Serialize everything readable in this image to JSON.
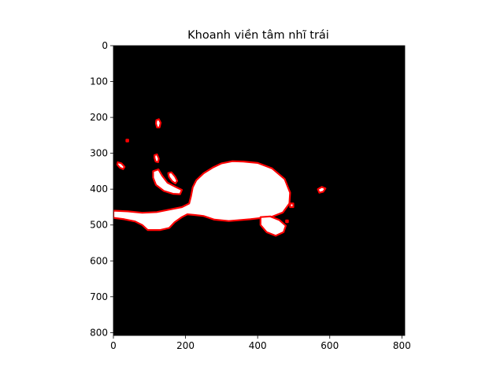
{
  "chart_data": {
    "type": "image",
    "title": "Khoanh viền tâm nhĩ trái",
    "xlabel": "",
    "ylabel": "",
    "image_size": [
      808,
      808
    ],
    "xlim": [
      0,
      808
    ],
    "ylim": [
      808,
      0
    ],
    "x_ticks": [
      0,
      200,
      400,
      600,
      800
    ],
    "y_ticks": [
      0,
      100,
      200,
      300,
      400,
      500,
      600,
      700,
      800
    ],
    "grid": false,
    "colors": {
      "background": "#000000",
      "mask_fill": "#ffffff",
      "contour": "#ff0000"
    },
    "regions": [
      {
        "name": "main-region",
        "fill": true,
        "points": [
          [
            0,
            460
          ],
          [
            40,
            462
          ],
          [
            80,
            466
          ],
          [
            120,
            464
          ],
          [
            160,
            456
          ],
          [
            190,
            450
          ],
          [
            210,
            440
          ],
          [
            215,
            420
          ],
          [
            220,
            395
          ],
          [
            230,
            375
          ],
          [
            250,
            356
          ],
          [
            275,
            340
          ],
          [
            300,
            328
          ],
          [
            330,
            322
          ],
          [
            360,
            323
          ],
          [
            400,
            327
          ],
          [
            440,
            342
          ],
          [
            475,
            372
          ],
          [
            490,
            410
          ],
          [
            488,
            440
          ],
          [
            470,
            465
          ],
          [
            440,
            477
          ],
          [
            380,
            484
          ],
          [
            320,
            489
          ],
          [
            280,
            485
          ],
          [
            250,
            475
          ],
          [
            225,
            472
          ],
          [
            205,
            470
          ],
          [
            190,
            478
          ],
          [
            170,
            492
          ],
          [
            155,
            508
          ],
          [
            130,
            514
          ],
          [
            95,
            514
          ],
          [
            80,
            500
          ],
          [
            60,
            490
          ],
          [
            30,
            484
          ],
          [
            0,
            480
          ]
        ]
      },
      {
        "name": "lower-right-blob",
        "fill": true,
        "points": [
          [
            408,
            478
          ],
          [
            435,
            476
          ],
          [
            460,
            486
          ],
          [
            478,
            502
          ],
          [
            472,
            520
          ],
          [
            450,
            530
          ],
          [
            425,
            520
          ],
          [
            408,
            500
          ]
        ]
      },
      {
        "name": "left-finger-blob",
        "fill": true,
        "points": [
          [
            110,
            350
          ],
          [
            125,
            345
          ],
          [
            135,
            362
          ],
          [
            150,
            382
          ],
          [
            175,
            395
          ],
          [
            190,
            402
          ],
          [
            185,
            414
          ],
          [
            165,
            413
          ],
          [
            140,
            405
          ],
          [
            118,
            388
          ],
          [
            110,
            368
          ]
        ]
      },
      {
        "name": "small-blob-1",
        "fill": true,
        "points": [
          [
            119,
            208
          ],
          [
            126,
            205
          ],
          [
            131,
            215
          ],
          [
            128,
            228
          ],
          [
            121,
            228
          ],
          [
            118,
            217
          ]
        ]
      },
      {
        "name": "small-blob-2",
        "fill": true,
        "points": [
          [
            114,
            305
          ],
          [
            121,
            303
          ],
          [
            126,
            315
          ],
          [
            124,
            325
          ],
          [
            117,
            323
          ],
          [
            114,
            313
          ]
        ]
      },
      {
        "name": "small-blob-3",
        "fill": true,
        "points": [
          [
            12,
            325
          ],
          [
            22,
            328
          ],
          [
            31,
            338
          ],
          [
            27,
            344
          ],
          [
            18,
            340
          ],
          [
            11,
            332
          ]
        ]
      },
      {
        "name": "small-blob-4",
        "fill": true,
        "points": [
          [
            152,
            355
          ],
          [
            161,
            353
          ],
          [
            171,
            365
          ],
          [
            177,
            377
          ],
          [
            172,
            384
          ],
          [
            163,
            378
          ],
          [
            154,
            366
          ]
        ]
      },
      {
        "name": "small-blob-5",
        "fill": true,
        "points": [
          [
            567,
            400
          ],
          [
            578,
            394
          ],
          [
            588,
            398
          ],
          [
            582,
            407
          ],
          [
            571,
            410
          ]
        ]
      },
      {
        "name": "dot-1",
        "fill": false,
        "points": [
          [
            36,
            262
          ],
          [
            41,
            262
          ],
          [
            41,
            267
          ],
          [
            36,
            267
          ]
        ]
      },
      {
        "name": "dot-2",
        "fill": true,
        "points": [
          [
            490,
            440
          ],
          [
            499,
            440
          ],
          [
            499,
            450
          ],
          [
            490,
            450
          ]
        ]
      },
      {
        "name": "dot-3",
        "fill": false,
        "points": [
          [
            479,
            487
          ],
          [
            484,
            487
          ],
          [
            484,
            492
          ],
          [
            479,
            492
          ]
        ]
      }
    ]
  }
}
